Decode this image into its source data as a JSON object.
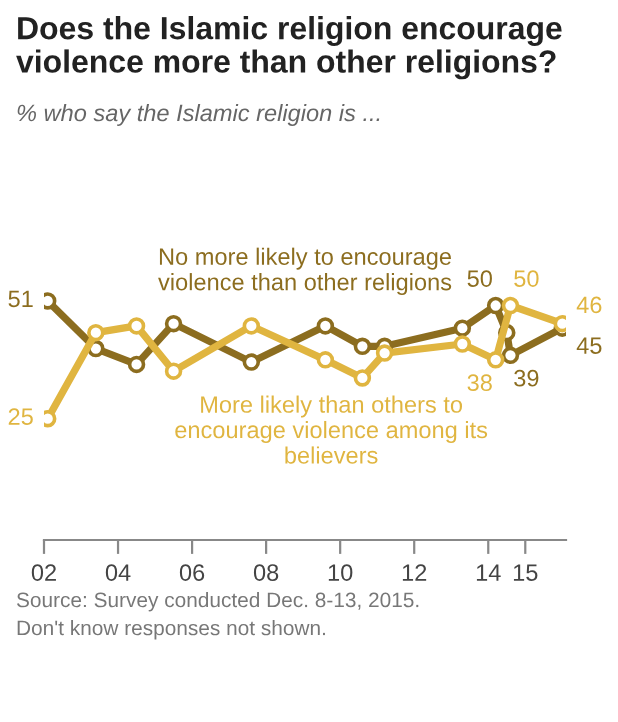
{
  "chart_data": {
    "type": "line",
    "title": "Does the Islamic religion encourage violence more than other religions?",
    "subtitle": "% who say the Islamic religion is ...",
    "series": [
      {
        "name": "No more likely to encourage violence than other religions",
        "color": "#8c6d1f",
        "x": [
          2002.1,
          2003.4,
          2004.5,
          2005.5,
          2007.6,
          2009.6,
          2010.6,
          2011.2,
          2013.3,
          2014.2,
          2014.5,
          2014.6,
          2016.0
        ],
        "values": [
          51,
          40.5,
          37,
          46,
          37.5,
          45.5,
          41,
          41,
          45,
          50,
          44,
          39,
          45
        ],
        "value_labels": [
          "51",
          null,
          null,
          null,
          null,
          null,
          null,
          null,
          null,
          "50",
          null,
          "39",
          "45"
        ]
      },
      {
        "name": "More likely than others to encourage violence among its believers",
        "color": "#e0b540",
        "x": [
          2002.1,
          2003.4,
          2004.5,
          2005.5,
          2007.6,
          2009.6,
          2010.6,
          2011.2,
          2013.3,
          2014.2,
          2014.6,
          2016.0
        ],
        "values": [
          25,
          44,
          45.5,
          35.5,
          45.5,
          38,
          34,
          39.5,
          41.5,
          38,
          50,
          46
        ],
        "value_labels": [
          "25",
          null,
          null,
          null,
          null,
          null,
          null,
          null,
          null,
          "38",
          "50",
          "46"
        ]
      }
    ],
    "xlim": [
      2002,
      2016.1
    ],
    "xticks": [
      {
        "value": 2002,
        "label": "02"
      },
      {
        "value": 2004,
        "label": "04"
      },
      {
        "value": 2006,
        "label": "06"
      },
      {
        "value": 2008,
        "label": "08"
      },
      {
        "value": 2010,
        "label": "10"
      },
      {
        "value": 2012,
        "label": "12"
      },
      {
        "value": 2014,
        "label": "14"
      },
      {
        "value": 2015,
        "label": "15"
      }
    ],
    "tick_labels": "x",
    "grid": false,
    "legend": false,
    "marker": "circle",
    "line_style": "solid",
    "annotations": [
      "Source: Survey conducted Dec. 8-13, 2015.",
      "Don't know responses not shown."
    ]
  }
}
